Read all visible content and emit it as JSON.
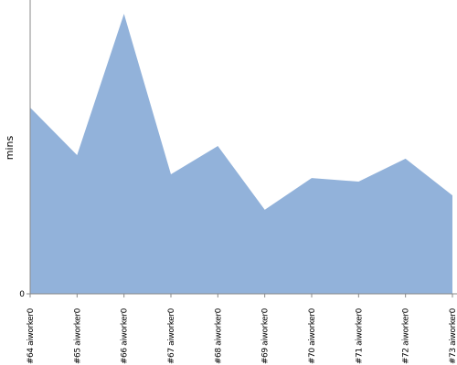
{
  "chart_data": {
    "type": "area",
    "y_label": "mins",
    "categories": [
      "#64 aiworker0",
      "#65 aiworker0",
      "#66 aiworker0",
      "#67 aiworker0",
      "#68 aiworker0",
      "#69 aiworker0",
      "#70 aiworker0",
      "#71 aiworker0",
      "#72 aiworker0",
      "#73 aiworker0"
    ],
    "values": [
      63.4,
      47.2,
      95.3,
      40.7,
      50.3,
      28.6,
      39.4,
      38.2,
      46.0,
      33.5
    ],
    "color": "#92b2da",
    "ylim": [
      0,
      100
    ],
    "yticks": [
      0
    ],
    "grid": false
  }
}
